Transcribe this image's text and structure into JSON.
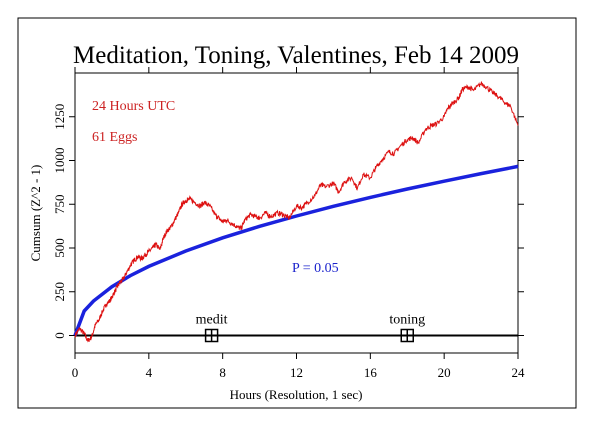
{
  "chart_data": {
    "type": "line",
    "title": "Meditation, Toning, Valentines, Feb 14 2009",
    "xlabel": "Hours (Resolution, 1 sec)",
    "ylabel": "Cumsum (Z^2 - 1)",
    "xlim": [
      0,
      24
    ],
    "ylim": [
      -100,
      1500
    ],
    "xticks": [
      0,
      4,
      8,
      12,
      16,
      20,
      24
    ],
    "yticks": [
      0,
      250,
      500,
      750,
      1000,
      1250
    ],
    "annotations": {
      "period": "24 Hours UTC",
      "eggs": "61 Eggs",
      "probability_label": "P = 0.05"
    },
    "colors": {
      "cumsum": "#dd1111",
      "envelope": "#1a22dd",
      "axes": "#000000",
      "annotation_text": "#cc2222",
      "p_text": "#1a22cc"
    },
    "series": [
      {
        "values_x": [
          0,
          0.25,
          0.5,
          0.7,
          0.9,
          1.1,
          1.3,
          1.5,
          1.7,
          1.9,
          2.0,
          2.2,
          2.4,
          2.6,
          2.8,
          3.0,
          3.2,
          3.4,
          3.6,
          3.8,
          4.0,
          4.2,
          4.4,
          4.6,
          4.8,
          5.0,
          5.2,
          5.4,
          5.6,
          5.8,
          6.0,
          6.2,
          6.5,
          6.8,
          7.0,
          7.3,
          7.6,
          7.8,
          8.0,
          8.2,
          8.5,
          8.8,
          9.0,
          9.2,
          9.5,
          9.8,
          10.0,
          10.3,
          10.6,
          11.0,
          11.3,
          11.6,
          12.0,
          12.3,
          12.6,
          13.0,
          13.3,
          13.6,
          14.0,
          14.3,
          14.6,
          15.0,
          15.3,
          15.6,
          16.0,
          16.3,
          16.6,
          17.0,
          17.3,
          17.6,
          18.0,
          18.3,
          18.6,
          19.0,
          19.3,
          19.6,
          20.0,
          20.2,
          20.5,
          20.8,
          21.0,
          21.3,
          21.6,
          22.0,
          22.3,
          22.6,
          23.0,
          23.3,
          23.6,
          24.0
        ],
        "values_y": [
          0,
          40,
          10,
          -30,
          -10,
          60,
          90,
          140,
          180,
          200,
          220,
          260,
          300,
          320,
          360,
          400,
          430,
          450,
          440,
          460,
          480,
          500,
          520,
          490,
          560,
          600,
          620,
          660,
          700,
          750,
          770,
          780,
          760,
          740,
          760,
          740,
          690,
          670,
          650,
          660,
          640,
          620,
          610,
          660,
          690,
          680,
          670,
          700,
          680,
          700,
          690,
          670,
          740,
          730,
          760,
          800,
          860,
          850,
          870,
          820,
          880,
          900,
          840,
          920,
          900,
          960,
          1000,
          1050,
          1040,
          1080,
          1120,
          1130,
          1100,
          1180,
          1200,
          1210,
          1250,
          1300,
          1330,
          1360,
          1410,
          1420,
          1400,
          1440,
          1420,
          1390,
          1360,
          1330,
          1310,
          1200
        ]
      },
      {
        "name": "P = 0.05",
        "values_x": [
          0,
          0.5,
          1,
          2,
          3,
          4,
          6,
          8,
          10,
          12,
          14,
          16,
          18,
          20,
          22,
          24
        ],
        "values_y": [
          0,
          140,
          197,
          279,
          342,
          395,
          483,
          558,
          624,
          683,
          738,
          789,
          837,
          882,
          925,
          966
        ]
      }
    ],
    "markers": [
      {
        "label": "medit",
        "x": 7.4,
        "y": 0
      },
      {
        "label": "toning",
        "x": 18.0,
        "y": 0
      }
    ]
  }
}
